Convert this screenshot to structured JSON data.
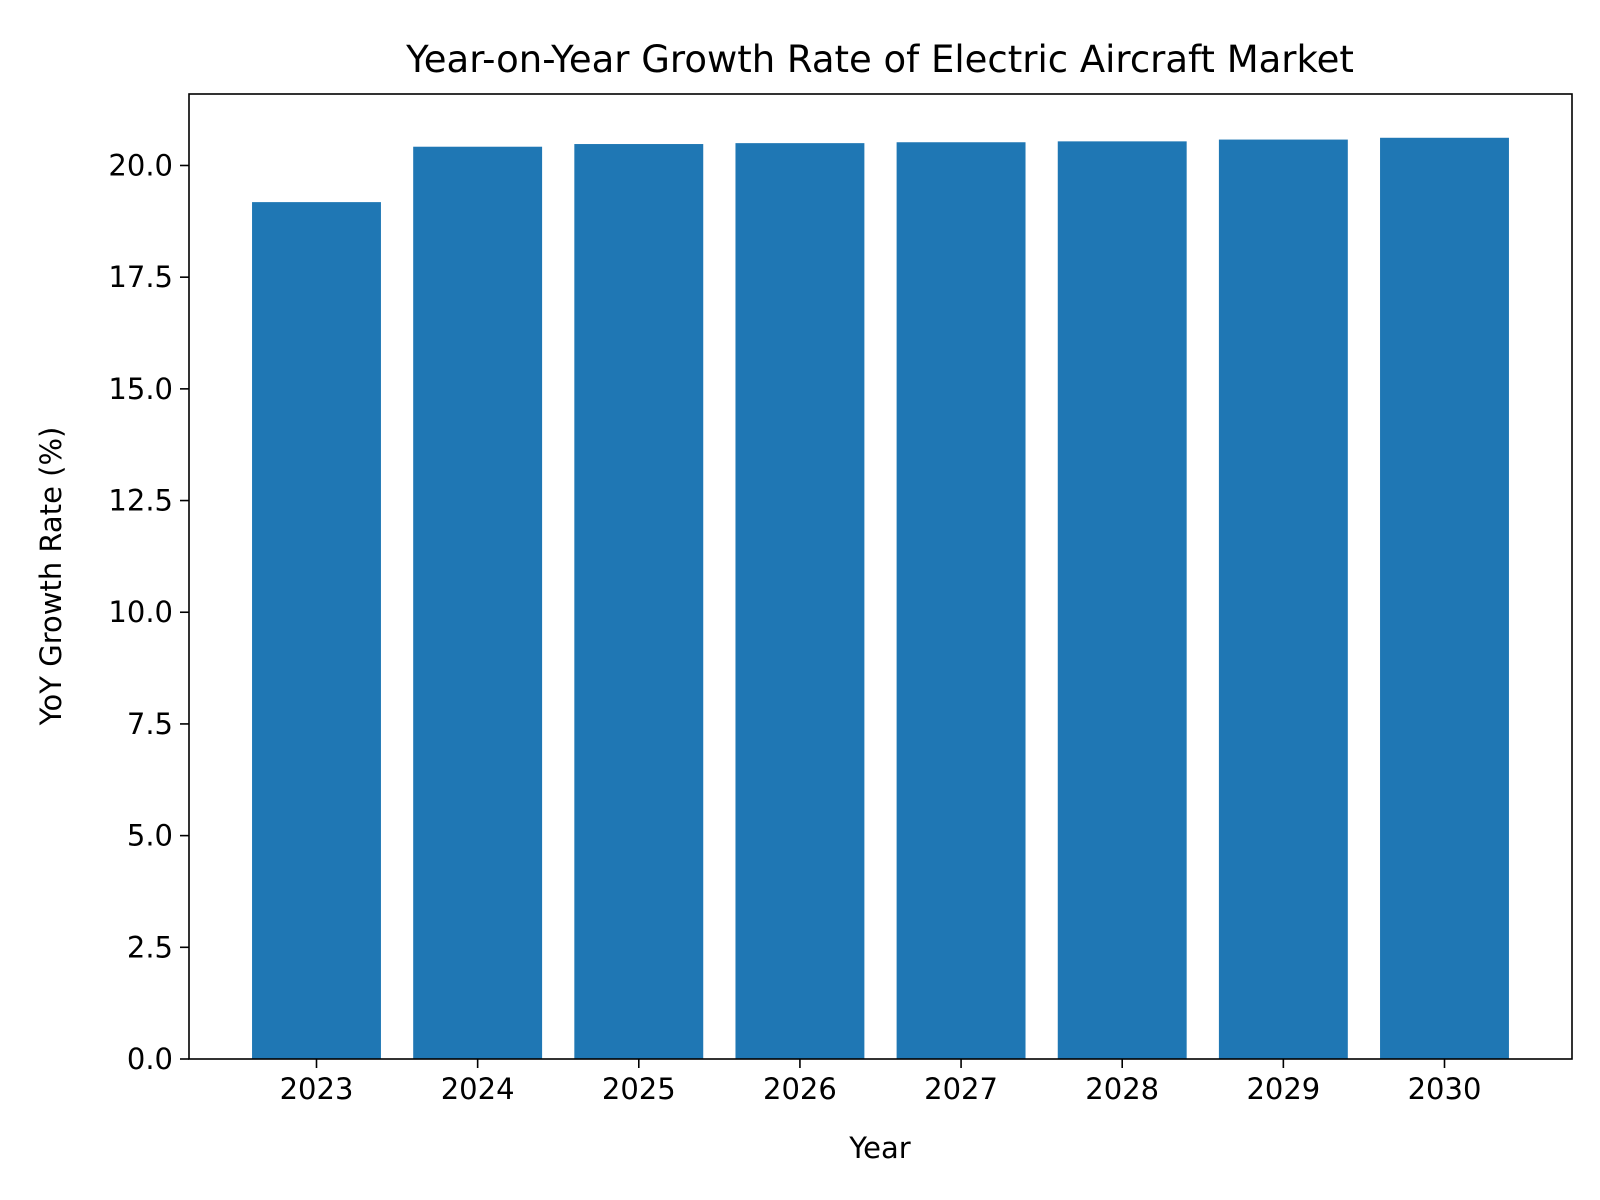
{
  "chart_data": {
    "type": "bar",
    "title": "Year-on-Year Growth Rate of Electric Aircraft Market",
    "xlabel": "Year",
    "ylabel": "YoY Growth Rate (%)",
    "categories": [
      "2023",
      "2024",
      "2025",
      "2026",
      "2027",
      "2028",
      "2029",
      "2030"
    ],
    "values": [
      19.18,
      20.42,
      20.48,
      20.5,
      20.52,
      20.54,
      20.58,
      20.62
    ],
    "ylim": [
      0,
      21.6
    ],
    "yticks": [
      "0.0",
      "2.5",
      "5.0",
      "7.5",
      "10.0",
      "12.5",
      "15.0",
      "17.5",
      "20.0"
    ],
    "grid": false,
    "legend": "none",
    "bar_color": "#1f77b4"
  }
}
